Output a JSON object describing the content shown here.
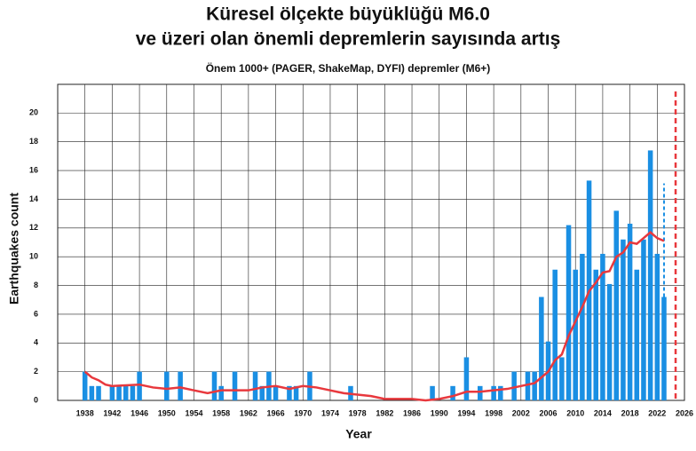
{
  "chart_data": {
    "type": "bar",
    "title": "Küresel ölçekte büyüklüğü M6.0",
    "title_line2": "ve üzeri olan önemli depremlerin sayısında artış",
    "subtitle": "Önem 1000+ (PAGER, ShakeMap, DYFI) depremler (M6+)",
    "x_label": "Year",
    "y_label": "Earthquakes count",
    "x": [
      1938,
      1939,
      1940,
      1942,
      1943,
      1944,
      1945,
      1946,
      1950,
      1952,
      1957,
      1958,
      1960,
      1963,
      1964,
      1965,
      1966,
      1968,
      1969,
      1971,
      1977,
      1989,
      1992,
      1994,
      1996,
      1998,
      1999,
      2001,
      2003,
      2004,
      2005,
      2006,
      2007,
      2008,
      2009,
      2010,
      2011,
      2012,
      2013,
      2014,
      2015,
      2016,
      2017,
      2018,
      2019,
      2020,
      2021,
      2022,
      2023
    ],
    "values": [
      2,
      1,
      1,
      1,
      1,
      1,
      1,
      2,
      2,
      2,
      2,
      1,
      2,
      2,
      1,
      2,
      1,
      1,
      1,
      2,
      1,
      1,
      1,
      3,
      1,
      1,
      1,
      2,
      2,
      2,
      7.2,
      4.1,
      9.1,
      3.0,
      12.2,
      9.1,
      10.2,
      15.3,
      9.1,
      10.2,
      8.1,
      13.2,
      11.2,
      12.3,
      9.1,
      11.2,
      17.4,
      10.2,
      7.2
    ],
    "color": "#1a8fe3",
    "projection": {
      "x": 2023,
      "value": 15.1,
      "color": "#1a8fe3"
    },
    "line": {
      "color": "#e8383d",
      "x": [
        1938,
        1939,
        1940,
        1941,
        1942,
        1946,
        1948,
        1950,
        1952,
        1954,
        1956,
        1958,
        1960,
        1962,
        1964,
        1966,
        1968,
        1970,
        1972,
        1974,
        1976,
        1978,
        1980,
        1982,
        1984,
        1986,
        1988,
        1990,
        1992,
        1994,
        1996,
        1998,
        2000,
        2002,
        2004,
        2006,
        2007,
        2008,
        2009,
        2010,
        2011,
        2012,
        2013,
        2014,
        2015,
        2016,
        2017,
        2018,
        2019,
        2020,
        2021,
        2022,
        2023
      ],
      "values": [
        2.0,
        1.6,
        1.4,
        1.1,
        1.0,
        1.1,
        0.9,
        0.8,
        0.9,
        0.7,
        0.5,
        0.7,
        0.7,
        0.7,
        0.9,
        1.0,
        0.8,
        1.0,
        0.9,
        0.7,
        0.5,
        0.4,
        0.3,
        0.1,
        0.1,
        0.1,
        0.0,
        0.1,
        0.3,
        0.6,
        0.6,
        0.7,
        0.8,
        1.0,
        1.2,
        2.0,
        2.8,
        3.2,
        4.5,
        5.5,
        6.5,
        7.6,
        8.2,
        8.9,
        9.0,
        10.0,
        10.3,
        11.0,
        10.9,
        11.3,
        11.7,
        11.3,
        11.1
      ]
    },
    "marker_line": {
      "x": 2024.7,
      "color": "#e8383d"
    },
    "xlim": [
      1934,
      2026
    ],
    "ylim": [
      0,
      22
    ],
    "xticks": [
      1938,
      1942,
      1946,
      1950,
      1954,
      1958,
      1962,
      1966,
      1970,
      1974,
      1978,
      1982,
      1986,
      1990,
      1994,
      1998,
      2002,
      2006,
      2010,
      2014,
      2018,
      2022,
      2026
    ],
    "yticks": [
      0,
      2,
      4,
      6,
      8,
      10,
      12,
      14,
      16,
      18,
      20
    ],
    "grid": true
  }
}
